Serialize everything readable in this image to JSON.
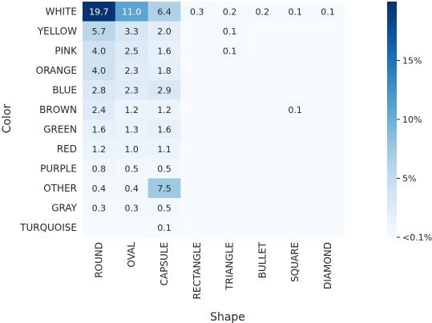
{
  "chart_data": {
    "type": "heatmap",
    "xlabel": "Shape",
    "ylabel": "Color",
    "x_categories": [
      "ROUND",
      "OVAL",
      "CAPSULE",
      "RECTANGLE",
      "TRIANGLE",
      "BULLET",
      "SQUARE",
      "DIAMOND"
    ],
    "y_categories": [
      "WHITE",
      "YELLOW",
      "PINK",
      "ORANGE",
      "BLUE",
      "BROWN",
      "GREEN",
      "RED",
      "PURPLE",
      "OTHER",
      "GRAY",
      "TURQUOISE"
    ],
    "values": [
      [
        19.7,
        11.0,
        6.4,
        0.3,
        0.2,
        0.2,
        0.1,
        0.1
      ],
      [
        5.7,
        3.3,
        2.0,
        null,
        0.1,
        null,
        null,
        null
      ],
      [
        4.0,
        2.5,
        1.6,
        null,
        0.1,
        null,
        null,
        null
      ],
      [
        4.0,
        2.3,
        1.8,
        null,
        null,
        null,
        null,
        null
      ],
      [
        2.8,
        2.3,
        2.9,
        null,
        null,
        null,
        null,
        null
      ],
      [
        2.4,
        1.2,
        1.2,
        null,
        null,
        null,
        0.1,
        null
      ],
      [
        1.6,
        1.3,
        1.6,
        null,
        null,
        null,
        null,
        null
      ],
      [
        1.2,
        1.0,
        1.1,
        null,
        null,
        null,
        null,
        null
      ],
      [
        0.8,
        0.5,
        0.5,
        null,
        null,
        null,
        null,
        null
      ],
      [
        0.4,
        0.4,
        7.5,
        null,
        null,
        null,
        null,
        null
      ],
      [
        0.3,
        0.3,
        0.5,
        null,
        null,
        null,
        null,
        null
      ],
      [
        null,
        null,
        0.1,
        null,
        null,
        null,
        null,
        null
      ]
    ],
    "value_range": [
      0,
      20
    ],
    "colormap": "Blues",
    "colorbar_ticks": [
      {
        "value": 0,
        "label": "<0.1%"
      },
      {
        "value": 5,
        "label": "5%"
      },
      {
        "value": 10,
        "label": "10%"
      },
      {
        "value": 15,
        "label": "15%"
      }
    ],
    "colors": {
      "low": "#f7fbff",
      "high": "#08306b",
      "text_dark": "#262626",
      "text_light": "#ffffff"
    }
  }
}
